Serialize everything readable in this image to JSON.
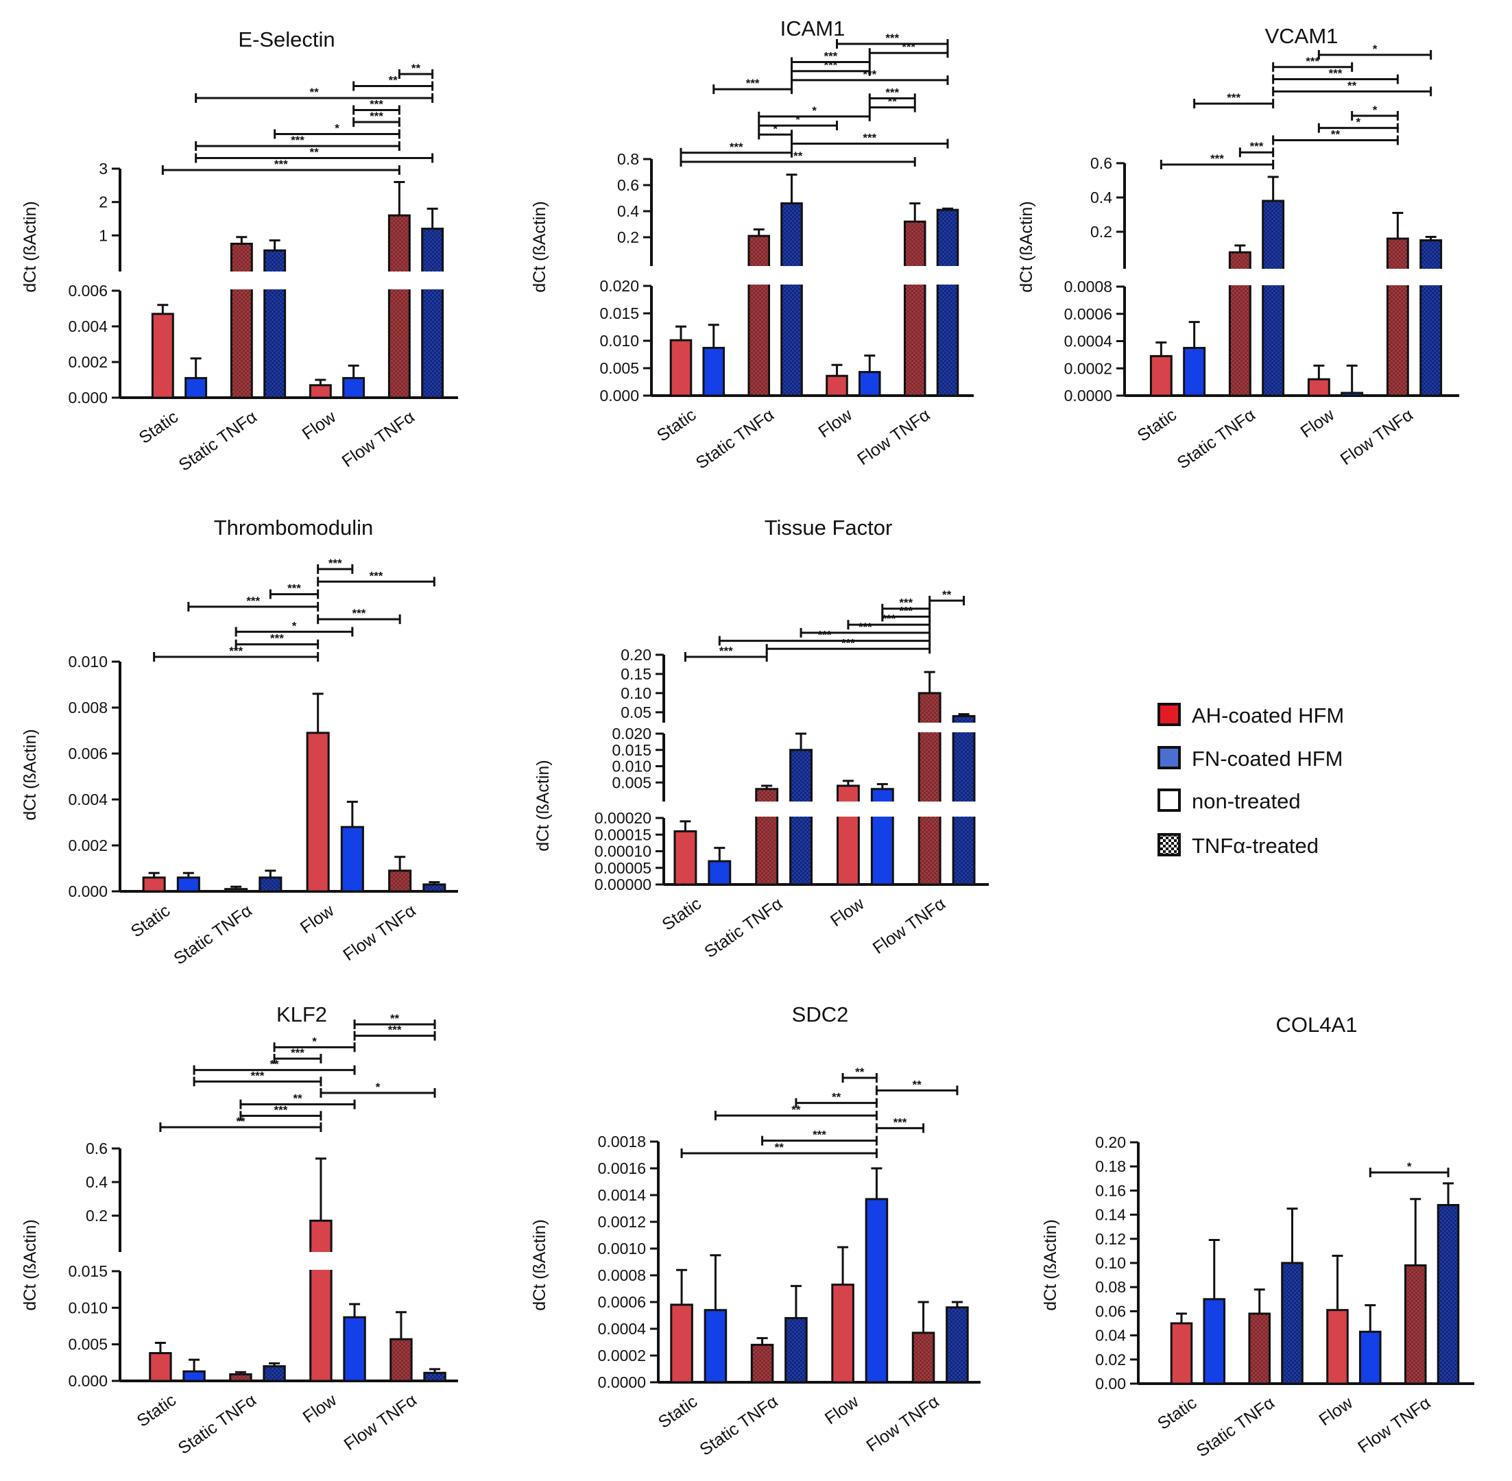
{
  "legend": [
    {
      "label": "AH-coated HFM",
      "swatch": "red"
    },
    {
      "label": "FN-coated HFM",
      "swatch": "blue"
    },
    {
      "label": "non-treated",
      "swatch": "white"
    },
    {
      "label": "TNFα-treated",
      "swatch": "checker"
    }
  ],
  "colors": {
    "ah": "#d6434b",
    "fn": "#1440e8",
    "ah_tnf": "#9e3a3d",
    "fn_tnf": "#1a2f9a",
    "axis": "#111111",
    "bg": "#ffffff"
  },
  "chart_data": [
    {
      "type": "bar",
      "title": "E-Selectin",
      "ylabel": "dCt (ßActin)",
      "categories": [
        "Static",
        "Static TNFα",
        "Flow",
        "Flow TNFα"
      ],
      "series": [
        {
          "name": "AH-coated HFM",
          "values": [
            0.0047,
            0.75,
            0.0007,
            1.6
          ],
          "errors": [
            0.0005,
            0.2,
            0.0003,
            1.0
          ]
        },
        {
          "name": "FN-coated HFM",
          "values": [
            0.0011,
            0.55,
            0.0011,
            1.2
          ],
          "errors": [
            0.0011,
            0.3,
            0.0007,
            0.6
          ]
        }
      ],
      "segments": [
        {
          "range": [
            0,
            0.006
          ],
          "ticks": [
            0,
            0.002,
            0.004,
            0.006
          ],
          "tick_labels": [
            "0.000",
            "0.002",
            "0.004",
            "0.006"
          ]
        },
        {
          "range": [
            0,
            3
          ],
          "ticks": [
            1,
            2,
            3
          ],
          "tick_labels": [
            "1",
            "2",
            "3"
          ]
        }
      ],
      "significance": [
        {
          "from": 0,
          "to": 6,
          "label": "***"
        },
        {
          "from": 1,
          "to": 7,
          "label": "**"
        },
        {
          "from": 1,
          "to": 6,
          "label": "***"
        },
        {
          "from": 3,
          "to": 6,
          "label": "*"
        },
        {
          "from": 5,
          "to": 6,
          "label": "***"
        },
        {
          "from": 6,
          "to": 5.6,
          "label": "***"
        },
        {
          "from": 1,
          "to": 7,
          "label": "**"
        },
        {
          "from": 5,
          "to": 7,
          "label": "**"
        },
        {
          "from": 6,
          "to": 7,
          "label": "**"
        }
      ]
    },
    {
      "type": "bar",
      "title": "ICAM1",
      "ylabel": "dCt (ßActin)",
      "categories": [
        "Static",
        "Static TNFα",
        "Flow",
        "Flow TNFα"
      ],
      "series": [
        {
          "name": "AH-coated HFM",
          "values": [
            0.0101,
            0.21,
            0.0036,
            0.32
          ],
          "errors": [
            0.0025,
            0.05,
            0.002,
            0.14
          ]
        },
        {
          "name": "FN-coated HFM",
          "values": [
            0.0087,
            0.46,
            0.0043,
            0.41
          ],
          "errors": [
            0.0042,
            0.22,
            0.003,
            0.01
          ]
        }
      ],
      "segments": [
        {
          "range": [
            0,
            0.02
          ],
          "ticks": [
            0,
            0.005,
            0.01,
            0.015,
            0.02
          ],
          "tick_labels": [
            "0.000",
            "0.005",
            "0.010",
            "0.015",
            "0.020"
          ]
        },
        {
          "range": [
            0,
            0.8
          ],
          "ticks": [
            0.2,
            0.4,
            0.6,
            0.8
          ],
          "tick_labels": [
            "0.2",
            "0.4",
            "0.6",
            "0.8"
          ]
        }
      ],
      "significance": [
        {
          "from": 0,
          "to": 6,
          "label": "**"
        },
        {
          "from": 0,
          "to": 3,
          "label": "***"
        },
        {
          "from": 3,
          "to": 7,
          "label": "***"
        },
        {
          "from": 2,
          "to": 3,
          "label": "*"
        },
        {
          "from": 2,
          "to": 4,
          "label": "*"
        },
        {
          "from": 2,
          "to": 5,
          "label": "*"
        },
        {
          "from": 5,
          "to": 6,
          "label": "**"
        },
        {
          "from": 5,
          "to": 6,
          "label": "***"
        },
        {
          "from": 1,
          "to": 3,
          "label": "***"
        },
        {
          "from": 3,
          "to": 7,
          "label": "***"
        },
        {
          "from": 3,
          "to": 5,
          "label": "***"
        },
        {
          "from": 3,
          "to": 5,
          "label": "***"
        },
        {
          "from": 5,
          "to": 7,
          "label": "***"
        },
        {
          "from": 4,
          "to": 7,
          "label": "***"
        }
      ]
    },
    {
      "type": "bar",
      "title": "VCAM1",
      "ylabel": "dCt (ßActin)",
      "categories": [
        "Static",
        "Static TNFα",
        "Flow",
        "Flow TNFα"
      ],
      "series": [
        {
          "name": "AH-coated HFM",
          "values": [
            0.00029,
            0.08,
            0.00012,
            0.16
          ],
          "errors": [
            0.0001,
            0.04,
            0.0001,
            0.15
          ]
        },
        {
          "name": "FN-coated HFM",
          "values": [
            0.00035,
            0.38,
            2e-05,
            0.15
          ],
          "errors": [
            0.00019,
            0.14,
            0.0002,
            0.02
          ]
        }
      ],
      "segments": [
        {
          "range": [
            0,
            0.0008
          ],
          "ticks": [
            0,
            0.0002,
            0.0004,
            0.0006,
            0.0008
          ],
          "tick_labels": [
            "0.0000",
            "0.0002",
            "0.0004",
            "0.0006",
            "0.0008"
          ]
        },
        {
          "range": [
            0,
            0.6
          ],
          "ticks": [
            0.2,
            0.4,
            0.6
          ],
          "tick_labels": [
            "0.2",
            "0.4",
            "0.6"
          ]
        }
      ],
      "significance": [
        {
          "from": 0,
          "to": 3,
          "label": "***"
        },
        {
          "from": 2,
          "to": 3,
          "label": "***"
        },
        {
          "from": 3,
          "to": 6,
          "label": "**"
        },
        {
          "from": 4,
          "to": 6,
          "label": "*"
        },
        {
          "from": 5,
          "to": 6,
          "label": "*"
        },
        {
          "from": 1,
          "to": 3,
          "label": "***"
        },
        {
          "from": 3,
          "to": 7,
          "label": "**"
        },
        {
          "from": 3,
          "to": 6,
          "label": "***"
        },
        {
          "from": 3,
          "to": 5,
          "label": "***"
        },
        {
          "from": 4,
          "to": 7,
          "label": "*"
        }
      ]
    },
    {
      "type": "bar",
      "title": "Thrombomodulin",
      "ylabel": "dCt (ßActin)",
      "categories": [
        "Static",
        "Static TNFα",
        "Flow",
        "Flow TNFα"
      ],
      "series": [
        {
          "name": "AH-coated HFM",
          "values": [
            0.0006,
            0.0001,
            0.0069,
            0.0009
          ],
          "errors": [
            0.0002,
            0.0001,
            0.0017,
            0.0006
          ]
        },
        {
          "name": "FN-coated HFM",
          "values": [
            0.0006,
            0.0006,
            0.0028,
            0.0003
          ],
          "errors": [
            0.0002,
            0.0003,
            0.0011,
            0.0001
          ]
        }
      ],
      "segments": [
        {
          "range": [
            0,
            0.01
          ],
          "ticks": [
            0,
            0.002,
            0.004,
            0.006,
            0.008,
            0.01
          ],
          "tick_labels": [
            "0.000",
            "0.002",
            "0.004",
            "0.006",
            "0.008",
            "0.010"
          ]
        }
      ],
      "significance": [
        {
          "from": 0,
          "to": 4,
          "label": "***"
        },
        {
          "from": 2,
          "to": 4,
          "label": "***"
        },
        {
          "from": 2,
          "to": 5,
          "label": "*"
        },
        {
          "from": 4,
          "to": 6,
          "label": "***"
        },
        {
          "from": 1,
          "to": 4,
          "label": "***"
        },
        {
          "from": 3,
          "to": 4,
          "label": "***"
        },
        {
          "from": 4,
          "to": 7,
          "label": "***"
        },
        {
          "from": 4,
          "to": 5,
          "label": "***"
        }
      ]
    },
    {
      "type": "bar",
      "title": "Tissue Factor",
      "ylabel": "dCt (ßActin)",
      "categories": [
        "Static",
        "Static TNFα",
        "Flow",
        "Flow  TNFα"
      ],
      "series": [
        {
          "name": "AH-coated HFM",
          "values": [
            0.00016,
            0.003,
            0.004,
            0.1
          ],
          "errors": [
            3e-05,
            0.001,
            0.0015,
            0.055
          ]
        },
        {
          "name": "FN-coated HFM",
          "values": [
            7e-05,
            0.015,
            0.003,
            0.04
          ],
          "errors": [
            4e-05,
            0.005,
            0.0015,
            0.005
          ]
        }
      ],
      "segments": [
        {
          "range": [
            0,
            0.0002
          ],
          "ticks": [
            0,
            5e-05,
            0.0001,
            0.00015,
            0.0002
          ],
          "tick_labels": [
            "0.00000",
            "0.00005",
            "0.00010",
            "0.00015",
            "0.00020"
          ]
        },
        {
          "range": [
            0,
            0.02
          ],
          "ticks": [
            0.005,
            0.01,
            0.015,
            0.02
          ],
          "tick_labels": [
            "0.005",
            "0.010",
            "0.015",
            "0.020"
          ]
        },
        {
          "range": [
            0.03,
            0.2
          ],
          "ticks": [
            0.05,
            0.1,
            0.15,
            0.2
          ],
          "tick_labels": [
            "0.05",
            "0.10",
            "0.15",
            "0.20"
          ]
        }
      ],
      "significance": [
        {
          "from": 0,
          "to": 2,
          "label": "***"
        },
        {
          "from": 2,
          "to": 6,
          "label": "***"
        },
        {
          "from": 1,
          "to": 6,
          "label": "***"
        },
        {
          "from": 3,
          "to": 6,
          "label": "***"
        },
        {
          "from": 4,
          "to": 6,
          "label": "***"
        },
        {
          "from": 5,
          "to": 6,
          "label": "***"
        },
        {
          "from": 5,
          "to": 6,
          "label": "***"
        },
        {
          "from": 6,
          "to": 7,
          "label": "**"
        }
      ]
    },
    {
      "type": "bar",
      "title": "KLF2",
      "ylabel": "dCt (ßActin)",
      "categories": [
        "Static",
        "Static TNFα",
        "Flow",
        "Flow TNFα"
      ],
      "series": [
        {
          "name": "AH-coated HFM",
          "values": [
            0.0038,
            0.0009,
            0.17,
            0.0057
          ],
          "errors": [
            0.0014,
            0.0003,
            0.37,
            0.0037
          ]
        },
        {
          "name": "FN-coated HFM",
          "values": [
            0.0013,
            0.002,
            0.0087,
            0.0011
          ],
          "errors": [
            0.0016,
            0.0004,
            0.0018,
            0.0005
          ]
        }
      ],
      "segments": [
        {
          "range": [
            0,
            0.015
          ],
          "ticks": [
            0,
            0.005,
            0.01,
            0.015
          ],
          "tick_labels": [
            "0.000",
            "0.005",
            "0.010",
            "0.015"
          ]
        },
        {
          "range": [
            0,
            0.6
          ],
          "ticks": [
            0.2,
            0.4,
            0.6
          ],
          "tick_labels": [
            "0.2",
            "0.4",
            "0.6"
          ]
        }
      ],
      "significance": [
        {
          "from": 0,
          "to": 4,
          "label": "**"
        },
        {
          "from": 2,
          "to": 4,
          "label": "***"
        },
        {
          "from": 2,
          "to": 5,
          "label": "**"
        },
        {
          "from": 4,
          "to": 7,
          "label": "*"
        },
        {
          "from": 1,
          "to": 4,
          "label": "***"
        },
        {
          "from": 1,
          "to": 5,
          "label": "**"
        },
        {
          "from": 3,
          "to": 4,
          "label": "***"
        },
        {
          "from": 3,
          "to": 5,
          "label": "*"
        },
        {
          "from": 5,
          "to": 7,
          "label": "***"
        },
        {
          "from": 5,
          "to": 7,
          "label": "**"
        }
      ]
    },
    {
      "type": "bar",
      "title": "SDC2",
      "ylabel": "dCt (ßActin)",
      "categories": [
        "Static",
        "Static TNFα",
        "Flow",
        "Flow TNFα"
      ],
      "series": [
        {
          "name": "AH-coated HFM",
          "values": [
            0.00058,
            0.00028,
            0.00073,
            0.00037
          ],
          "errors": [
            0.00026,
            5e-05,
            0.00028,
            0.00023
          ]
        },
        {
          "name": "FN-coated HFM",
          "values": [
            0.00054,
            0.00048,
            0.00137,
            0.00056
          ],
          "errors": [
            0.00041,
            0.00024,
            0.00023,
            4e-05
          ]
        }
      ],
      "segments": [
        {
          "range": [
            0,
            0.0018
          ],
          "ticks": [
            0,
            0.0002,
            0.0004,
            0.0006,
            0.0008,
            0.001,
            0.0012,
            0.0014,
            0.0016,
            0.0018
          ],
          "tick_labels": [
            "0.0000",
            "0.0002",
            "0.0004",
            "0.0006",
            "0.0008",
            "0.0010",
            "0.0012",
            "0.0014",
            "0.0016",
            "0.0018"
          ]
        }
      ],
      "significance": [
        {
          "from": 0,
          "to": 5,
          "label": "**"
        },
        {
          "from": 2,
          "to": 5,
          "label": "***"
        },
        {
          "from": 5,
          "to": 6,
          "label": "***"
        },
        {
          "from": 1,
          "to": 5,
          "label": "**"
        },
        {
          "from": 3,
          "to": 5,
          "label": "**"
        },
        {
          "from": 5,
          "to": 7,
          "label": "**"
        },
        {
          "from": 4,
          "to": 5,
          "label": "**"
        }
      ]
    },
    {
      "type": "bar",
      "title": "COL4A1",
      "ylabel": "dCt (ßActin)",
      "categories": [
        "Static",
        "Static TNFα",
        "Flow",
        "Flow TNFα"
      ],
      "series": [
        {
          "name": "AH-coated HFM",
          "values": [
            0.05,
            0.058,
            0.061,
            0.098
          ],
          "errors": [
            0.008,
            0.02,
            0.045,
            0.055
          ]
        },
        {
          "name": "FN-coated HFM",
          "values": [
            0.07,
            0.1,
            0.043,
            0.148
          ],
          "errors": [
            0.049,
            0.045,
            0.022,
            0.018
          ]
        }
      ],
      "segments": [
        {
          "range": [
            0,
            0.2
          ],
          "ticks": [
            0,
            0.02,
            0.04,
            0.06,
            0.08,
            0.1,
            0.12,
            0.14,
            0.16,
            0.18,
            0.2
          ],
          "tick_labels": [
            "0.00",
            "0.02",
            "0.04",
            "0.06",
            "0.08",
            "0.10",
            "0.12",
            "0.14",
            "0.16",
            "0.18",
            "0.20"
          ]
        }
      ],
      "significance": [
        {
          "from": 5,
          "to": 7,
          "label": "*"
        }
      ]
    }
  ]
}
